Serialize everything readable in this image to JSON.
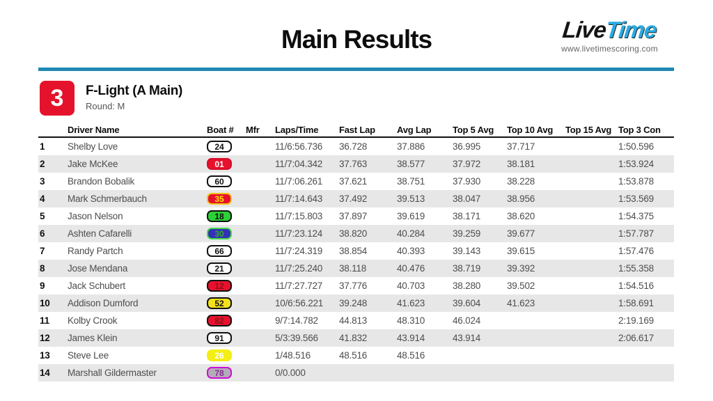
{
  "page": {
    "title": "Main Results",
    "logo": {
      "part1": "Live",
      "part2": "Time",
      "url": "www.livetimescoring.com"
    },
    "colors": {
      "accent_blue": "#2089b5",
      "accent_red": "#e4132b",
      "alt_row": "#e7e7e7",
      "logo_blue": "#29abe2"
    }
  },
  "race": {
    "number": "3",
    "name": "F-Light (A Main)",
    "round": "Round: M"
  },
  "table": {
    "columns": [
      "Driver Name",
      "Boat #",
      "Mfr",
      "Laps/Time",
      "Fast Lap",
      "Avg Lap",
      "Top 5 Avg",
      "Top 10 Avg",
      "Top 15 Avg",
      "Top 3 Con"
    ],
    "rows": [
      {
        "pos": "1",
        "driver": "Shelby Love",
        "boat": "24",
        "boat_bg": "#ffffff",
        "boat_border": "#111111",
        "boat_fg": "#111111",
        "mfr": "",
        "laps_time": "11/6:56.736",
        "fast_lap": "36.728",
        "avg_lap": "37.886",
        "top5": "36.995",
        "top10": "37.717",
        "top15": "",
        "top3con": "1:50.596"
      },
      {
        "pos": "2",
        "driver": "Jake McKee",
        "boat": "01",
        "boat_bg": "#e8112d",
        "boat_border": "#d60f28",
        "boat_fg": "#ffffff",
        "mfr": "",
        "laps_time": "11/7:04.342",
        "fast_lap": "37.763",
        "avg_lap": "38.577",
        "top5": "37.972",
        "top10": "38.181",
        "top15": "",
        "top3con": "1:53.924"
      },
      {
        "pos": "3",
        "driver": "Brandon Bobalik",
        "boat": "60",
        "boat_bg": "#ffffff",
        "boat_border": "#111111",
        "boat_fg": "#111111",
        "mfr": "",
        "laps_time": "11/7:06.261",
        "fast_lap": "37.621",
        "avg_lap": "38.751",
        "top5": "37.930",
        "top10": "38.228",
        "top15": "",
        "top3con": "1:53.878"
      },
      {
        "pos": "4",
        "driver": "Mark Schmerbauch",
        "boat": "35",
        "boat_bg": "#e8112d",
        "boat_border": "#f0c419",
        "boat_fg": "#ffe400",
        "mfr": "",
        "laps_time": "11/7:14.643",
        "fast_lap": "37.492",
        "avg_lap": "39.513",
        "top5": "38.047",
        "top10": "38.956",
        "top15": "",
        "top3con": "1:53.569"
      },
      {
        "pos": "5",
        "driver": "Jason Nelson",
        "boat": "18",
        "boat_bg": "#2bd135",
        "boat_border": "#111111",
        "boat_fg": "#111111",
        "mfr": "",
        "laps_time": "11/7:15.803",
        "fast_lap": "37.897",
        "avg_lap": "39.619",
        "top5": "38.171",
        "top10": "38.620",
        "top15": "",
        "top3con": "1:54.375"
      },
      {
        "pos": "6",
        "driver": "Ashten Cafarelli",
        "boat": "30",
        "boat_bg": "#3232b4",
        "boat_border": "#46d94f",
        "boat_fg": "#3aa83a",
        "mfr": "",
        "laps_time": "11/7:23.124",
        "fast_lap": "38.820",
        "avg_lap": "40.284",
        "top5": "39.259",
        "top10": "39.677",
        "top15": "",
        "top3con": "1:57.787"
      },
      {
        "pos": "7",
        "driver": "Randy Partch",
        "boat": "66",
        "boat_bg": "#ffffff",
        "boat_border": "#111111",
        "boat_fg": "#111111",
        "mfr": "",
        "laps_time": "11/7:24.319",
        "fast_lap": "38.854",
        "avg_lap": "40.393",
        "top5": "39.143",
        "top10": "39.615",
        "top15": "",
        "top3con": "1:57.476"
      },
      {
        "pos": "8",
        "driver": "Jose Mendana",
        "boat": "21",
        "boat_bg": "#ffffff",
        "boat_border": "#111111",
        "boat_fg": "#111111",
        "mfr": "",
        "laps_time": "11/7:25.240",
        "fast_lap": "38.118",
        "avg_lap": "40.476",
        "top5": "38.719",
        "top10": "39.392",
        "top15": "",
        "top3con": "1:55.358"
      },
      {
        "pos": "9",
        "driver": "Jack Schubert",
        "boat": "12",
        "boat_bg": "#e8112d",
        "boat_border": "#111111",
        "boat_fg": "#8a1016",
        "mfr": "",
        "laps_time": "11/7:27.727",
        "fast_lap": "37.776",
        "avg_lap": "40.703",
        "top5": "38.280",
        "top10": "39.502",
        "top15": "",
        "top3con": "1:54.516"
      },
      {
        "pos": "10",
        "driver": "Addison Dumford",
        "boat": "52",
        "boat_bg": "#f3e11d",
        "boat_border": "#111111",
        "boat_fg": "#111111",
        "mfr": "",
        "laps_time": "10/6:56.221",
        "fast_lap": "39.248",
        "avg_lap": "41.623",
        "top5": "39.604",
        "top10": "41.623",
        "top15": "",
        "top3con": "1:58.691"
      },
      {
        "pos": "11",
        "driver": "Kolby Crook",
        "boat": "82",
        "boat_bg": "#e8112d",
        "boat_border": "#111111",
        "boat_fg": "#8a1016",
        "mfr": "",
        "laps_time": "9/7:14.782",
        "fast_lap": "44.813",
        "avg_lap": "48.310",
        "top5": "46.024",
        "top10": "",
        "top15": "",
        "top3con": "2:19.169"
      },
      {
        "pos": "12",
        "driver": "James Klein",
        "boat": "91",
        "boat_bg": "#ffffff",
        "boat_border": "#111111",
        "boat_fg": "#111111",
        "mfr": "",
        "laps_time": "5/3:39.566",
        "fast_lap": "41.832",
        "avg_lap": "43.914",
        "top5": "43.914",
        "top10": "",
        "top15": "",
        "top3con": "2:06.617"
      },
      {
        "pos": "13",
        "driver": "Steve Lee",
        "boat": "26",
        "boat_bg": "#f4ee16",
        "boat_border": "#f4ee16",
        "boat_fg": "#ffffff",
        "mfr": "",
        "laps_time": "1/48.516",
        "fast_lap": "48.516",
        "avg_lap": "48.516",
        "top5": "",
        "top10": "",
        "top15": "",
        "top3con": ""
      },
      {
        "pos": "14",
        "driver": "Marshall Gildermaster",
        "boat": "78",
        "boat_bg": "#b3abba",
        "boat_border": "#cd0fce",
        "boat_fg": "#8b2a94",
        "mfr": "",
        "laps_time": "0/0.000",
        "fast_lap": "",
        "avg_lap": "",
        "top5": "",
        "top10": "",
        "top15": "",
        "top3con": ""
      }
    ]
  }
}
